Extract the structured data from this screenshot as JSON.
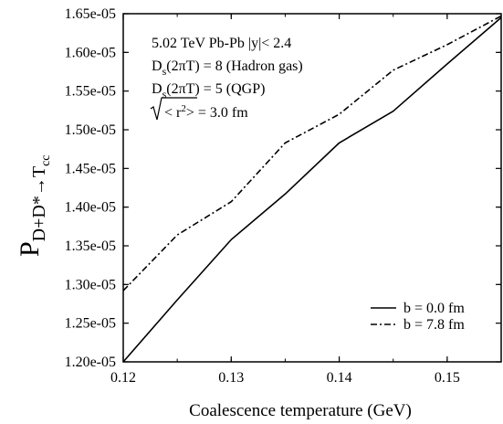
{
  "chart_data": {
    "type": "line",
    "xlabel": "Coalescence temperature (GeV)",
    "ylabel": {
      "main": "P",
      "sub": "D+D*→T",
      "subsub": "cc"
    },
    "xlim": [
      0.12,
      0.155
    ],
    "ylim": [
      1.2e-05,
      1.65e-05
    ],
    "xticks": [
      {
        "value": 0.12,
        "label": "0.12"
      },
      {
        "value": 0.13,
        "label": "0.13"
      },
      {
        "value": 0.14,
        "label": "0.14"
      },
      {
        "value": 0.15,
        "label": "0.15"
      }
    ],
    "yticks": [
      {
        "value": 1.2e-05,
        "label": "1.20e-05"
      },
      {
        "value": 1.25e-05,
        "label": "1.25e-05"
      },
      {
        "value": 1.3e-05,
        "label": "1.30e-05"
      },
      {
        "value": 1.35e-05,
        "label": "1.35e-05"
      },
      {
        "value": 1.4e-05,
        "label": "1.40e-05"
      },
      {
        "value": 1.45e-05,
        "label": "1.45e-05"
      },
      {
        "value": 1.5e-05,
        "label": "1.50e-05"
      },
      {
        "value": 1.55e-05,
        "label": "1.55e-05"
      },
      {
        "value": 1.6e-05,
        "label": "1.60e-05"
      },
      {
        "value": 1.65e-05,
        "label": "1.65e-05"
      }
    ],
    "x_minor_step": 0.005,
    "y_minor_step": 1e-06,
    "annotations": {
      "line1": "5.02 TeV Pb-Pb |y|< 2.4",
      "line2_pre": "D",
      "line2_sub": "s",
      "line2_post": "(2πT) = 8 (Hadron gas)",
      "line3_pre": "D",
      "line3_sub": "s",
      "line3_post": "(2πT) = 5 (QGP)",
      "line4_rad": "< r",
      "line4_sup": "2",
      "line4_close": ">",
      "line4_post": " = 3.0 fm"
    },
    "legend_position": "bottom-right",
    "series": [
      {
        "name": "b = 0.0 fm",
        "dash": "solid",
        "x": [
          0.12,
          0.125,
          0.13,
          0.135,
          0.14,
          0.145,
          0.15,
          0.155
        ],
        "y": [
          1.2e-05,
          1.28e-05,
          1.358e-05,
          1.417e-05,
          1.483e-05,
          1.524e-05,
          1.585e-05,
          1.645e-05
        ]
      },
      {
        "name": "b = 7.8 fm",
        "dash": "dashdot",
        "x": [
          0.12,
          0.125,
          0.13,
          0.135,
          0.14,
          0.145,
          0.15,
          0.155
        ],
        "y": [
          1.292e-05,
          1.364e-05,
          1.407e-05,
          1.483e-05,
          1.52e-05,
          1.577e-05,
          1.61e-05,
          1.647e-05
        ]
      }
    ]
  }
}
